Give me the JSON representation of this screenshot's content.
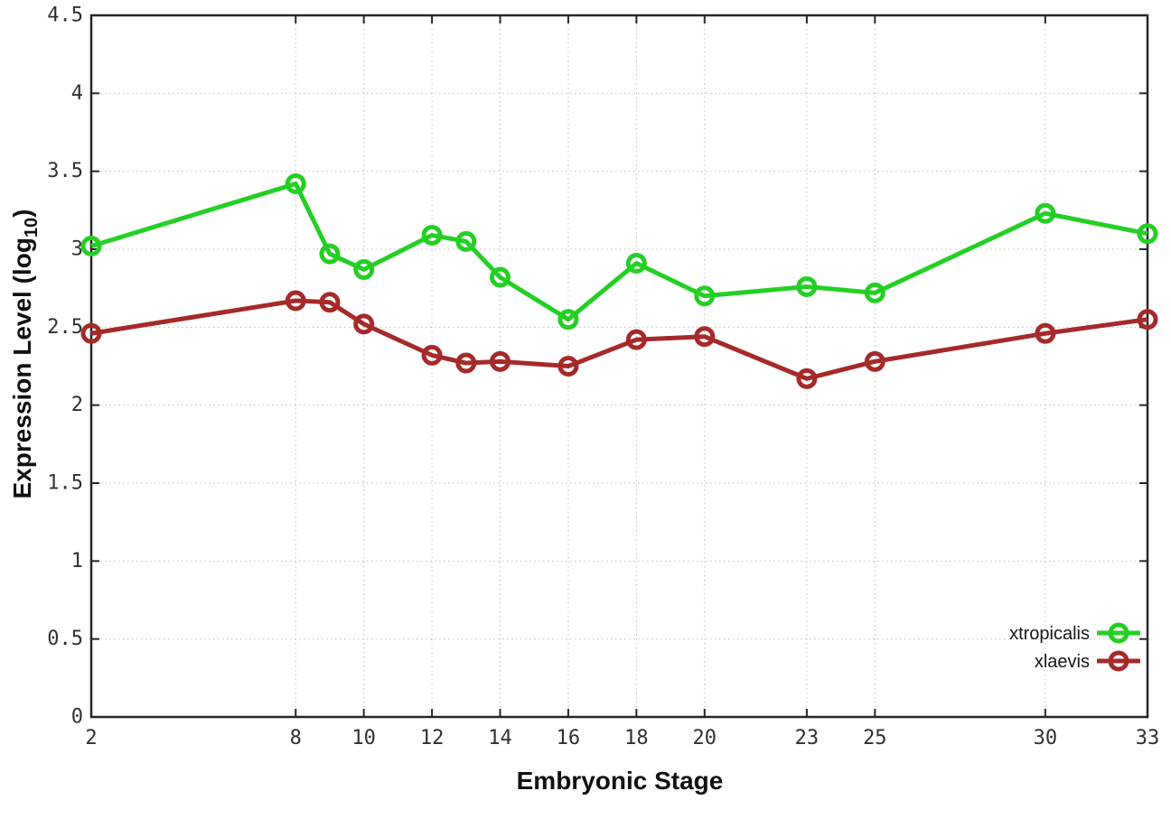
{
  "chart_data": {
    "type": "line",
    "title": "",
    "xlabel": "Embryonic Stage",
    "ylabel_parts": {
      "prefix": "Expression Level (log",
      "sub": "10",
      "suffix": ")"
    },
    "xlim": [
      2,
      33
    ],
    "ylim": [
      0,
      4.5
    ],
    "x_ticks": [
      2,
      8,
      10,
      12,
      14,
      16,
      18,
      20,
      23,
      25,
      30,
      33
    ],
    "y_ticks": [
      "0",
      "0.5",
      "1",
      "1.5",
      "2",
      "2.5",
      "3",
      "3.5",
      "4",
      "4.5"
    ],
    "grid": true,
    "grid_style": "dotted",
    "border": "full-box-with-mirrored-ticks",
    "legend_position": "inside-bottom-right",
    "x": [
      2,
      8,
      9,
      10,
      12,
      13,
      14,
      16,
      18,
      20,
      23,
      25,
      30,
      33
    ],
    "series": [
      {
        "name": "xtropicalis",
        "color": "#24cf24",
        "marker": "open-circle",
        "values": [
          3.02,
          3.42,
          2.97,
          2.87,
          3.09,
          3.05,
          2.82,
          2.55,
          2.91,
          2.7,
          2.76,
          2.72,
          3.23,
          3.1
        ]
      },
      {
        "name": "xlaevis",
        "color": "#a52a2a",
        "marker": "open-circle",
        "values": [
          2.46,
          2.67,
          2.66,
          2.52,
          2.32,
          2.27,
          2.28,
          2.25,
          2.42,
          2.44,
          2.17,
          2.28,
          2.46,
          2.55
        ]
      }
    ],
    "colors": {
      "axis": "#262626",
      "grid": "#bdbdbd",
      "text": "#303030",
      "background": "#ffffff"
    }
  }
}
